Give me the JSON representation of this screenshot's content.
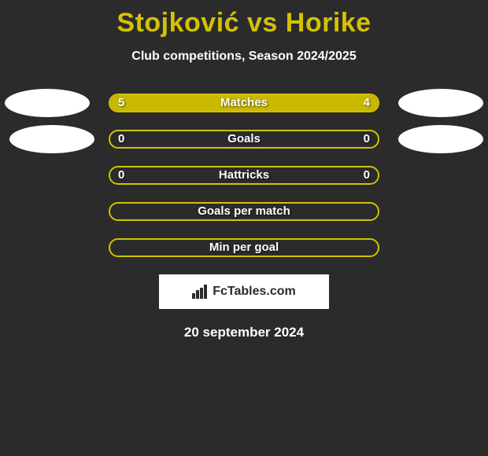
{
  "title": "Stojković vs Horike",
  "subtitle": "Club competitions, Season 2024/2025",
  "date": "20 september 2024",
  "logo_text": "FcTables.com",
  "colors": {
    "background": "#2b2b2b",
    "accent": "#d4c104",
    "white": "#ffffff",
    "border_yellow": "#d4c104",
    "fill_yellow": "#c9b800",
    "avatar": "#ffffff"
  },
  "stats": [
    {
      "label": "Matches",
      "left_value": "5",
      "right_value": "4",
      "left_pct": 55.6,
      "right_pct": 44.4,
      "left_avatar": true,
      "right_avatar": true
    },
    {
      "label": "Goals",
      "left_value": "0",
      "right_value": "0",
      "left_pct": 0,
      "right_pct": 0,
      "left_avatar": true,
      "right_avatar": true,
      "left_avatar_inset": 12
    },
    {
      "label": "Hattricks",
      "left_value": "0",
      "right_value": "0",
      "left_pct": 0,
      "right_pct": 0,
      "left_avatar": false,
      "right_avatar": false
    },
    {
      "label": "Goals per match",
      "left_value": "",
      "right_value": "",
      "left_pct": 0,
      "right_pct": 0,
      "left_avatar": false,
      "right_avatar": false
    },
    {
      "label": "Min per goal",
      "left_value": "",
      "right_value": "",
      "left_pct": 0,
      "right_pct": 0,
      "left_avatar": false,
      "right_avatar": false
    }
  ]
}
